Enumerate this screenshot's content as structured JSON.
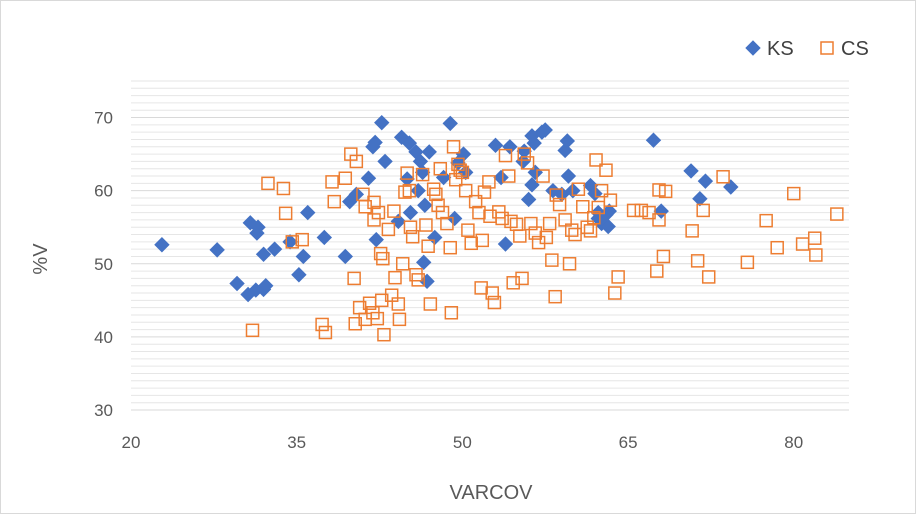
{
  "chart_data": {
    "type": "scatter",
    "xlabel": "VARCOV",
    "ylabel": "%V",
    "xlim": [
      20,
      85
    ],
    "ylim": [
      30,
      75
    ],
    "x_ticks": [
      20,
      35,
      50,
      65,
      80
    ],
    "y_ticks": [
      30,
      40,
      50,
      60,
      70
    ],
    "grid": true,
    "legend_position": "top-right",
    "series": [
      {
        "name": "KS",
        "marker": "diamond-filled",
        "color": "#4472c4",
        "points": [
          [
            22.8,
            52.6
          ],
          [
            27.8,
            51.9
          ],
          [
            29.6,
            47.3
          ],
          [
            30.6,
            45.8
          ],
          [
            31.3,
            46.4
          ],
          [
            32.0,
            46.5
          ],
          [
            32.2,
            47.0
          ],
          [
            30.8,
            55.6
          ],
          [
            31.4,
            54.2
          ],
          [
            31.5,
            55.0
          ],
          [
            32.0,
            51.3
          ],
          [
            33.0,
            52.0
          ],
          [
            34.4,
            53.0
          ],
          [
            35.2,
            48.5
          ],
          [
            35.6,
            51.0
          ],
          [
            36.0,
            57.0
          ],
          [
            37.5,
            53.6
          ],
          [
            39.4,
            51.0
          ],
          [
            39.8,
            58.5
          ],
          [
            40.4,
            59.5
          ],
          [
            41.5,
            61.7
          ],
          [
            41.9,
            66.0
          ],
          [
            42.1,
            66.6
          ],
          [
            42.2,
            53.3
          ],
          [
            42.7,
            69.3
          ],
          [
            43.0,
            64.0
          ],
          [
            44.5,
            67.3
          ],
          [
            45.2,
            66.5
          ],
          [
            45.3,
            57.0
          ],
          [
            45.8,
            65.3
          ],
          [
            46.2,
            64.0
          ],
          [
            46.4,
            62.5
          ],
          [
            45.0,
            61.6
          ],
          [
            46.6,
            58.0
          ],
          [
            46.0,
            60.0
          ],
          [
            46.5,
            50.2
          ],
          [
            46.8,
            47.6
          ],
          [
            47.0,
            65.3
          ],
          [
            48.3,
            61.8
          ],
          [
            48.9,
            69.2
          ],
          [
            49.3,
            56.2
          ],
          [
            49.6,
            63.8
          ],
          [
            50.1,
            65.0
          ],
          [
            50.3,
            62.5
          ],
          [
            53.0,
            66.2
          ],
          [
            53.5,
            61.8
          ],
          [
            53.9,
            52.7
          ],
          [
            54.3,
            66.0
          ],
          [
            55.5,
            64.0
          ],
          [
            55.6,
            65.4
          ],
          [
            56.0,
            58.8
          ],
          [
            56.3,
            60.8
          ],
          [
            56.3,
            67.5
          ],
          [
            56.5,
            66.5
          ],
          [
            56.6,
            62.5
          ],
          [
            57.2,
            68.0
          ],
          [
            57.5,
            68.3
          ],
          [
            58.2,
            60.0
          ],
          [
            59.0,
            59.5
          ],
          [
            59.3,
            65.5
          ],
          [
            59.5,
            66.8
          ],
          [
            59.6,
            62.0
          ],
          [
            60.0,
            60.0
          ],
          [
            61.6,
            60.7
          ],
          [
            62.0,
            59.6
          ],
          [
            62.3,
            56.2
          ],
          [
            62.6,
            55.5
          ],
          [
            63.0,
            56.7
          ],
          [
            63.2,
            55.1
          ],
          [
            63.3,
            57.2
          ],
          [
            67.3,
            66.9
          ],
          [
            68.0,
            57.2
          ],
          [
            70.7,
            62.7
          ],
          [
            71.5,
            58.9
          ],
          [
            72.0,
            61.3
          ],
          [
            74.3,
            60.5
          ],
          [
            62.3,
            57.0
          ],
          [
            47.5,
            53.6
          ],
          [
            44.2,
            55.8
          ]
        ]
      },
      {
        "name": "CS",
        "marker": "square-hollow",
        "color": "#ed7d31",
        "points": [
          [
            31.0,
            40.9
          ],
          [
            32.4,
            61.0
          ],
          [
            33.8,
            60.3
          ],
          [
            34.0,
            56.9
          ],
          [
            34.6,
            53.0
          ],
          [
            35.5,
            53.3
          ],
          [
            37.3,
            41.7
          ],
          [
            37.6,
            40.6
          ],
          [
            38.2,
            61.2
          ],
          [
            38.4,
            58.5
          ],
          [
            39.4,
            61.7
          ],
          [
            39.9,
            65.0
          ],
          [
            40.4,
            64.0
          ],
          [
            40.2,
            48.0
          ],
          [
            40.3,
            41.8
          ],
          [
            40.7,
            44.0
          ],
          [
            41.2,
            42.4
          ],
          [
            41.6,
            44.6
          ],
          [
            41.9,
            43.3
          ],
          [
            42.3,
            42.5
          ],
          [
            42.7,
            45.0
          ],
          [
            42.9,
            40.3
          ],
          [
            41.0,
            59.5
          ],
          [
            41.2,
            57.8
          ],
          [
            42.0,
            58.4
          ],
          [
            42.4,
            57.0
          ],
          [
            42.0,
            56.0
          ],
          [
            42.6,
            51.4
          ],
          [
            42.8,
            50.7
          ],
          [
            43.3,
            54.7
          ],
          [
            43.8,
            57.2
          ],
          [
            43.9,
            48.1
          ],
          [
            44.2,
            44.5
          ],
          [
            44.3,
            42.4
          ],
          [
            44.6,
            50.0
          ],
          [
            44.8,
            59.8
          ],
          [
            45.0,
            62.4
          ],
          [
            45.2,
            60.0
          ],
          [
            45.3,
            55.0
          ],
          [
            45.5,
            53.7
          ],
          [
            45.8,
            48.5
          ],
          [
            46.0,
            47.8
          ],
          [
            46.4,
            62.2
          ],
          [
            46.7,
            55.3
          ],
          [
            46.9,
            52.4
          ],
          [
            47.1,
            44.5
          ],
          [
            47.4,
            60.2
          ],
          [
            47.6,
            59.5
          ],
          [
            48.0,
            63.0
          ],
          [
            48.2,
            57.0
          ],
          [
            48.6,
            55.5
          ],
          [
            48.9,
            52.2
          ],
          [
            49.0,
            43.3
          ],
          [
            49.2,
            66.0
          ],
          [
            49.6,
            63.6
          ],
          [
            49.8,
            62.8
          ],
          [
            50.0,
            62.5
          ],
          [
            50.3,
            60.0
          ],
          [
            50.5,
            54.6
          ],
          [
            50.8,
            52.8
          ],
          [
            51.2,
            58.5
          ],
          [
            51.5,
            57.0
          ],
          [
            51.7,
            46.7
          ],
          [
            52.0,
            59.8
          ],
          [
            52.4,
            61.2
          ],
          [
            52.5,
            56.5
          ],
          [
            52.7,
            46.0
          ],
          [
            52.9,
            44.7
          ],
          [
            53.3,
            57.1
          ],
          [
            53.6,
            56.2
          ],
          [
            53.9,
            64.8
          ],
          [
            54.2,
            62.0
          ],
          [
            54.4,
            55.8
          ],
          [
            54.6,
            47.4
          ],
          [
            54.9,
            55.4
          ],
          [
            55.2,
            53.8
          ],
          [
            55.4,
            48.0
          ],
          [
            55.6,
            65.0
          ],
          [
            55.9,
            63.8
          ],
          [
            56.2,
            55.5
          ],
          [
            56.6,
            54.2
          ],
          [
            56.9,
            52.9
          ],
          [
            57.3,
            62.0
          ],
          [
            57.6,
            53.6
          ],
          [
            57.9,
            55.5
          ],
          [
            58.1,
            50.5
          ],
          [
            58.4,
            45.5
          ],
          [
            58.5,
            59.4
          ],
          [
            58.8,
            58.1
          ],
          [
            59.3,
            56.0
          ],
          [
            59.7,
            50.0
          ],
          [
            59.9,
            54.6
          ],
          [
            60.2,
            54.0
          ],
          [
            60.5,
            60.2
          ],
          [
            60.9,
            57.8
          ],
          [
            61.3,
            55.0
          ],
          [
            61.6,
            54.5
          ],
          [
            61.9,
            56.3
          ],
          [
            62.1,
            64.2
          ],
          [
            62.3,
            57.7
          ],
          [
            62.6,
            60.0
          ],
          [
            63.0,
            62.8
          ],
          [
            63.4,
            58.7
          ],
          [
            63.8,
            46.0
          ],
          [
            64.1,
            48.2
          ],
          [
            65.5,
            57.3
          ],
          [
            66.2,
            57.3
          ],
          [
            66.9,
            57.0
          ],
          [
            67.6,
            49.0
          ],
          [
            67.8,
            56.0
          ],
          [
            67.8,
            60.1
          ],
          [
            68.2,
            51.0
          ],
          [
            68.4,
            59.9
          ],
          [
            70.8,
            54.5
          ],
          [
            71.3,
            50.4
          ],
          [
            71.8,
            57.3
          ],
          [
            72.3,
            48.2
          ],
          [
            73.6,
            61.9
          ],
          [
            75.8,
            50.2
          ],
          [
            77.5,
            55.9
          ],
          [
            78.5,
            52.2
          ],
          [
            80.0,
            59.6
          ],
          [
            80.8,
            52.7
          ],
          [
            81.9,
            53.5
          ],
          [
            82.0,
            51.2
          ],
          [
            83.9,
            56.8
          ],
          [
            49.4,
            61.5
          ],
          [
            51.8,
            53.2
          ],
          [
            47.8,
            58.0
          ],
          [
            43.6,
            45.7
          ]
        ]
      }
    ]
  }
}
